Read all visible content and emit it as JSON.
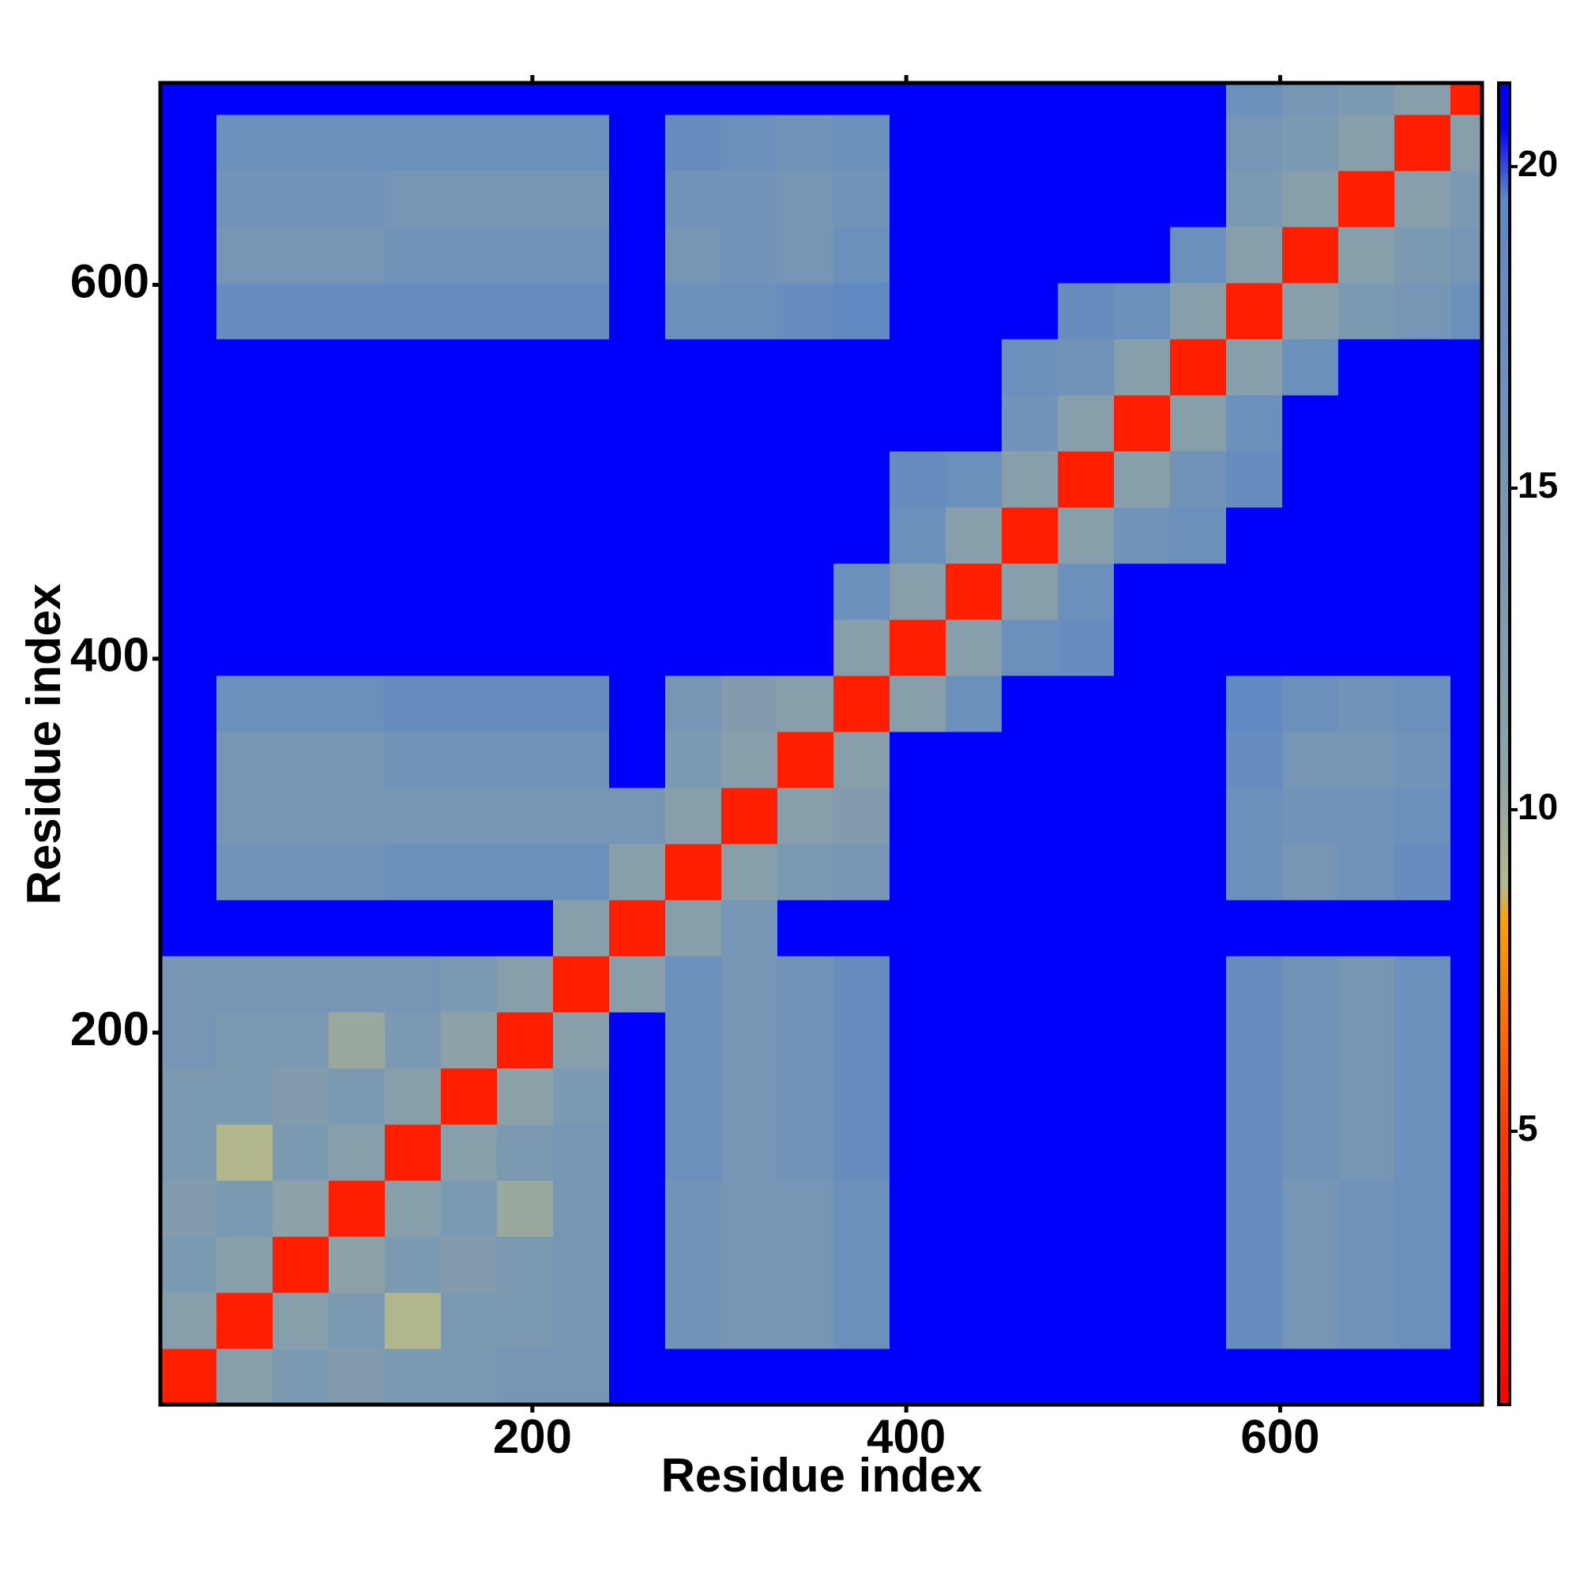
{
  "chart_data": {
    "type": "heatmap",
    "x_label": "Residue index",
    "y_label": "Residue index",
    "xlim": [
      1,
      708
    ],
    "ylim": [
      1,
      708
    ],
    "xticks": [
      200,
      400,
      600
    ],
    "yticks": [
      200,
      400,
      600
    ],
    "x_edges": [
      1,
      31,
      61,
      91,
      121,
      151,
      181,
      211,
      241,
      271,
      301,
      331,
      361,
      391,
      421,
      451,
      481,
      511,
      541,
      571,
      601,
      631,
      661,
      691,
      708
    ],
    "y_edges": [
      1,
      31,
      61,
      91,
      121,
      151,
      181,
      211,
      241,
      271,
      301,
      331,
      361,
      391,
      421,
      451,
      481,
      511,
      541,
      571,
      601,
      631,
      661,
      691,
      708
    ],
    "z": [
      [
        3,
        12,
        14,
        13,
        14,
        14,
        15,
        15,
        21,
        21,
        21,
        21,
        21,
        21,
        21,
        21,
        21,
        21,
        21,
        21,
        21,
        21,
        21,
        21
      ],
      [
        12,
        3,
        12,
        14,
        9,
        14,
        14,
        15,
        21,
        16,
        15,
        15,
        17,
        21,
        21,
        21,
        21,
        21,
        21,
        18,
        15,
        16,
        17,
        21
      ],
      [
        14,
        12,
        3,
        11,
        14,
        13,
        14,
        15,
        21,
        16,
        15,
        15,
        17,
        21,
        21,
        21,
        21,
        21,
        21,
        18,
        15,
        16,
        17,
        21
      ],
      [
        13,
        14,
        11,
        3,
        12,
        14,
        10,
        15,
        21,
        16,
        15,
        15,
        17,
        21,
        21,
        21,
        21,
        21,
        21,
        18,
        15,
        16,
        17,
        21
      ],
      [
        14,
        9,
        14,
        12,
        3,
        12,
        14,
        15,
        21,
        17,
        15,
        16,
        18,
        21,
        21,
        21,
        21,
        21,
        21,
        18,
        16,
        15,
        17,
        21
      ],
      [
        14,
        14,
        13,
        14,
        12,
        3,
        11,
        14,
        21,
        17,
        15,
        16,
        18,
        21,
        21,
        21,
        21,
        21,
        21,
        18,
        16,
        15,
        17,
        21
      ],
      [
        15,
        14,
        14,
        10,
        14,
        11,
        3,
        12,
        21,
        17,
        15,
        16,
        18,
        21,
        21,
        21,
        21,
        21,
        21,
        18,
        16,
        15,
        17,
        21
      ],
      [
        15,
        15,
        15,
        15,
        15,
        14,
        12,
        3,
        12,
        17,
        15,
        16,
        18,
        21,
        21,
        21,
        21,
        21,
        21,
        18,
        16,
        15,
        17,
        21
      ],
      [
        21,
        21,
        21,
        21,
        21,
        21,
        21,
        12,
        3,
        12,
        15,
        21,
        21,
        21,
        21,
        21,
        21,
        21,
        21,
        21,
        21,
        21,
        21,
        21
      ],
      [
        21,
        16,
        16,
        16,
        17,
        17,
        17,
        17,
        12,
        3,
        12,
        14,
        15,
        21,
        21,
        21,
        21,
        21,
        21,
        17,
        15,
        16,
        18,
        21
      ],
      [
        21,
        15,
        15,
        15,
        15,
        15,
        15,
        15,
        15,
        12,
        3,
        12,
        13,
        21,
        21,
        21,
        21,
        21,
        21,
        17,
        16,
        16,
        17,
        21
      ],
      [
        21,
        15,
        15,
        15,
        16,
        16,
        16,
        16,
        21,
        14,
        12,
        3,
        12,
        21,
        21,
        21,
        21,
        21,
        21,
        18,
        15,
        15,
        16,
        21
      ],
      [
        21,
        17,
        17,
        17,
        18,
        18,
        18,
        18,
        21,
        15,
        13,
        12,
        3,
        12,
        17,
        21,
        21,
        21,
        21,
        19,
        17,
        16,
        17,
        21
      ],
      [
        21,
        21,
        21,
        21,
        21,
        21,
        21,
        21,
        21,
        21,
        21,
        21,
        12,
        3,
        12,
        17,
        18,
        21,
        21,
        21,
        21,
        21,
        21,
        21
      ],
      [
        21,
        21,
        21,
        21,
        21,
        21,
        21,
        21,
        21,
        21,
        21,
        21,
        17,
        12,
        3,
        12,
        17,
        21,
        21,
        21,
        21,
        21,
        21,
        21
      ],
      [
        21,
        21,
        21,
        21,
        21,
        21,
        21,
        21,
        21,
        21,
        21,
        21,
        21,
        17,
        12,
        3,
        12,
        16,
        17,
        21,
        21,
        21,
        21,
        21
      ],
      [
        21,
        21,
        21,
        21,
        21,
        21,
        21,
        21,
        21,
        21,
        21,
        21,
        21,
        18,
        17,
        12,
        3,
        12,
        16,
        18,
        21,
        21,
        21,
        21
      ],
      [
        21,
        21,
        21,
        21,
        21,
        21,
        21,
        21,
        21,
        21,
        21,
        21,
        21,
        21,
        21,
        16,
        12,
        3,
        12,
        17,
        21,
        21,
        21,
        21
      ],
      [
        21,
        21,
        21,
        21,
        21,
        21,
        21,
        21,
        21,
        21,
        21,
        21,
        21,
        21,
        21,
        17,
        16,
        12,
        3,
        12,
        17,
        21,
        21,
        21
      ],
      [
        21,
        18,
        18,
        18,
        18,
        18,
        18,
        18,
        21,
        17,
        17,
        18,
        19,
        21,
        21,
        21,
        18,
        17,
        12,
        3,
        12,
        14,
        15,
        17
      ],
      [
        21,
        15,
        15,
        15,
        16,
        16,
        16,
        16,
        21,
        15,
        16,
        15,
        17,
        21,
        21,
        21,
        21,
        21,
        17,
        12,
        3,
        12,
        14,
        15
      ],
      [
        21,
        16,
        16,
        16,
        15,
        15,
        15,
        15,
        21,
        16,
        16,
        15,
        16,
        21,
        21,
        21,
        21,
        21,
        21,
        14,
        12,
        3,
        12,
        14
      ],
      [
        21,
        17,
        17,
        17,
        17,
        17,
        17,
        17,
        21,
        18,
        17,
        16,
        17,
        21,
        21,
        21,
        21,
        21,
        21,
        15,
        14,
        12,
        3,
        12
      ],
      [
        21,
        21,
        21,
        21,
        21,
        21,
        21,
        21,
        21,
        21,
        21,
        21,
        21,
        21,
        21,
        21,
        21,
        21,
        21,
        17,
        15,
        14,
        12,
        3
      ]
    ],
    "zlim": [
      0.75,
      21.3
    ],
    "zticks": [
      5,
      10,
      15,
      20
    ],
    "colorscale": [
      {
        "value": 0.75,
        "color": "#ff0000"
      },
      {
        "value": 5,
        "color": "#ff3a00"
      },
      {
        "value": 8.3,
        "color": "#ffa000"
      },
      {
        "value": 8.8,
        "color": "#b5b98a"
      },
      {
        "value": 10.5,
        "color": "#8fa3a6"
      },
      {
        "value": 19.5,
        "color": "#5f88c4"
      },
      {
        "value": 20.6,
        "color": "#0000ff"
      },
      {
        "value": 21.3,
        "color": "#0000ff"
      }
    ]
  }
}
